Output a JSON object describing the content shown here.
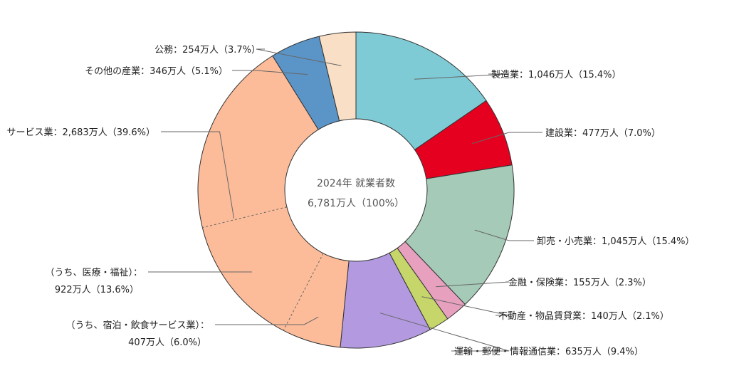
{
  "chart_data": {
    "type": "pie",
    "center": {
      "line1": "2024年 就業者数",
      "line2": "6,781万人（100%）"
    },
    "unit": "万人",
    "total": 6781,
    "slices": [
      {
        "key": "manufacturing",
        "name": "製造業",
        "value": 1046,
        "percent": 15.4,
        "color": "#7ecbd6",
        "label": "製造業：1,046万人（15.4%）"
      },
      {
        "key": "construction",
        "name": "建設業",
        "value": 477,
        "percent": 7.0,
        "color": "#e60020",
        "label": "建設業：477万人（7.0%）"
      },
      {
        "key": "wholesale_retail",
        "name": "卸売・小売業",
        "value": 1045,
        "percent": 15.4,
        "color": "#a5cab7",
        "label": "卸売・小売業：1,045万人（15.4%）"
      },
      {
        "key": "finance_insurance",
        "name": "金融・保険業",
        "value": 155,
        "percent": 2.3,
        "color": "#e8a0bf",
        "label": "金融・保険業：155万人（2.3%）"
      },
      {
        "key": "real_estate",
        "name": "不動産・物品賃貸業",
        "value": 140,
        "percent": 2.1,
        "color": "#c6d66a",
        "label": "不動産・物品賃貸業：140万人（2.1%）"
      },
      {
        "key": "transport_info",
        "name": "運輸・郵便・情報通信業",
        "value": 635,
        "percent": 9.4,
        "color": "#b39ae0",
        "label": "運輸・郵便・情報通信業：635万人（9.4%）"
      },
      {
        "key": "services",
        "name": "サービス業",
        "value": 2683,
        "percent": 39.6,
        "color": "#fcbc9a",
        "label": "サービス業：2,683万人（39.6%）"
      },
      {
        "key": "other_industries",
        "name": "その他の産業",
        "value": 346,
        "percent": 5.1,
        "color": "#5b95c8",
        "label": "その他の産業：346万人（5.1%）"
      },
      {
        "key": "public_service",
        "name": "公務",
        "value": 254,
        "percent": 3.7,
        "color": "#f8dfc6",
        "label": "公務：254万人（3.7%）"
      }
    ],
    "sub_breakdown": [
      {
        "key": "medical_welfare",
        "name": "うち、医療・福祉",
        "value": 922,
        "percent": 13.6,
        "label_line1": "（うち、医療・福祉）：",
        "label_line2": "922万人（13.6%）"
      },
      {
        "key": "lodging_food",
        "name": "うち、宿泊・飲食サービス業",
        "value": 407,
        "percent": 6.0,
        "label_line1": "（うち、宿泊・飲食サービス業）：",
        "label_line2": "407万人（6.0%）"
      }
    ]
  }
}
